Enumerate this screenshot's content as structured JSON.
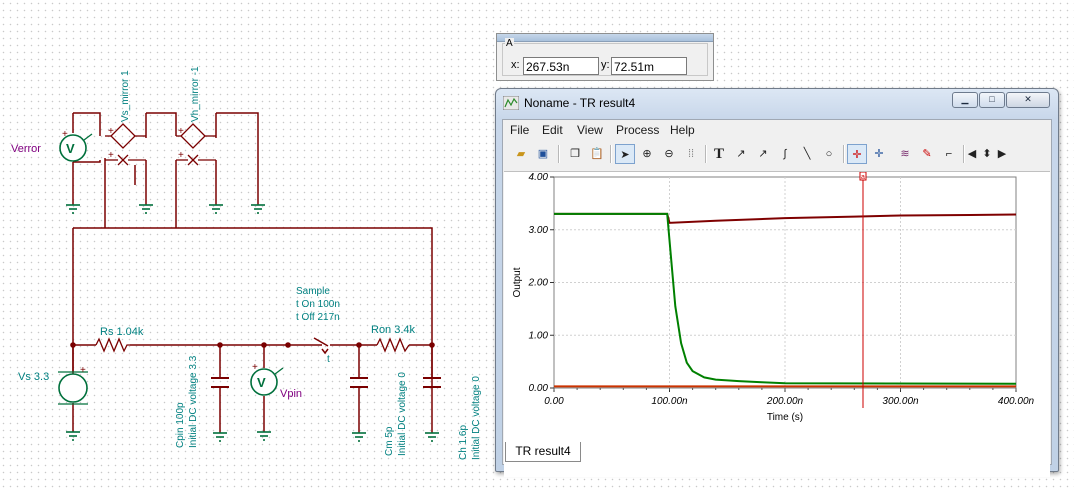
{
  "schematic": {
    "labels": {
      "verror": "Verror",
      "vs_mirror": "Vs_mirror 1",
      "vh_mirror": "Vh_mirror -1",
      "vs": "Vs 3.3",
      "rs": "Rs 1.04k",
      "switch_name": "Sample",
      "switch_ton": "t On 100n",
      "switch_toff": "t Off 217n",
      "switch_t": "t",
      "ron": "Ron 3.4k",
      "vpin": "Vpin",
      "cpin_name": "Cpin 100p",
      "cpin_ic": "Initial DC voltage 3.3",
      "cm_name": "Cm 5p",
      "cm_ic": "Initial DC voltage 0",
      "ch_name": "Ch 1.6p",
      "ch_ic": "Initial DC voltage 0",
      "plus": "+",
      "v": "V"
    }
  },
  "cursor_window": {
    "group": "A",
    "x_label": "x:",
    "x_value": "267.53n",
    "y_label": "y:",
    "y_value": "72.51m"
  },
  "result_window": {
    "title": "Noname - TR result4",
    "menu": [
      "File",
      "Edit",
      "View",
      "Process",
      "Help"
    ],
    "tab": "TR result4",
    "colors": {
      "accent": "#cc0000",
      "series1": "#7f0000",
      "series2": "#008000",
      "series3": "#cc3300"
    }
  },
  "chart_data": {
    "type": "line",
    "xlabel": "Time (s)",
    "ylabel": "Output",
    "xlim": [
      0,
      400
    ],
    "ylim": [
      0,
      4
    ],
    "x_ticks": [
      "0.00",
      "100.00n",
      "200.00n",
      "300.00n",
      "400.00n"
    ],
    "y_ticks": [
      "0.00",
      "1.00",
      "2.00",
      "3.00",
      "4.00"
    ],
    "grid": true,
    "series": [
      {
        "x": [
          0,
          98,
          100,
          140,
          200,
          260,
          300,
          360,
          400
        ],
        "y": [
          3.3,
          3.3,
          3.13,
          3.17,
          3.22,
          3.25,
          3.27,
          3.28,
          3.29
        ],
        "color": "#7f0000"
      },
      {
        "x": [
          0,
          98,
          100,
          105,
          110,
          115,
          120,
          130,
          140,
          160,
          180,
          200,
          400
        ],
        "y": [
          3.3,
          3.3,
          2.8,
          1.55,
          0.85,
          0.48,
          0.32,
          0.2,
          0.16,
          0.13,
          0.11,
          0.09,
          0.08
        ],
        "color": "#008000"
      },
      {
        "x": [
          0,
          400
        ],
        "y": [
          0.03,
          0.03
        ],
        "color": "#cc3300"
      }
    ],
    "cursor": {
      "x": 267.53,
      "label": "a"
    }
  }
}
